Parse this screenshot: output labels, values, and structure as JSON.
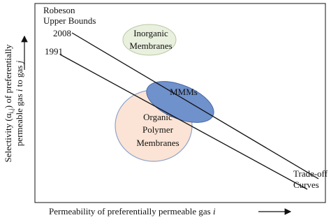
{
  "title": [
    "Robeson",
    "Upper Bounds"
  ],
  "curves": [
    {
      "label": "2008"
    },
    {
      "label": "1991"
    }
  ],
  "regions": [
    {
      "label": [
        "Inorganic",
        "Membranes"
      ]
    },
    {
      "label": [
        "MMMs"
      ]
    },
    {
      "label": [
        "Organic",
        "Polymer",
        "Membranes"
      ]
    }
  ],
  "curves_label": [
    "Trade-off",
    "Curves"
  ],
  "y_axis": {
    "lines": [
      [
        "Selectivity (α",
        "i,j",
        ") of preferentially"
      ],
      [
        "permeable gas ",
        "i",
        " to gas ",
        "j"
      ]
    ]
  },
  "x_axis": {
    "parts": [
      "Permeability of preferentially permeable gas ",
      "i"
    ]
  }
}
